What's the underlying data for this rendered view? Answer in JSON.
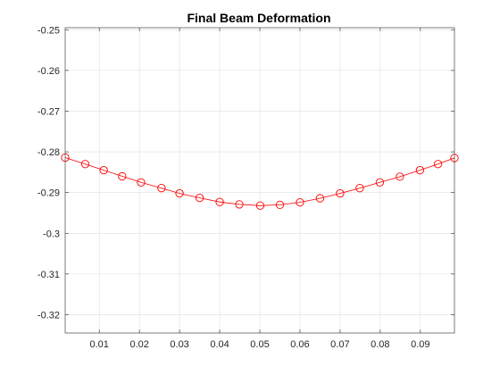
{
  "chart_data": {
    "type": "line",
    "title": "Final Beam Deformation",
    "xlabel": "",
    "ylabel": "",
    "xlim": [
      0.0015,
      0.0985
    ],
    "ylim": [
      -0.3245,
      -0.2495
    ],
    "grid": true,
    "xticks": [
      0.01,
      0.02,
      0.03,
      0.04,
      0.05,
      0.06,
      0.07,
      0.08,
      0.09
    ],
    "xtick_labels": [
      "0.01",
      "0.02",
      "0.03",
      "0.04",
      "0.05",
      "0.06",
      "0.07",
      "0.08",
      "0.09"
    ],
    "yticks": [
      -0.25,
      -0.26,
      -0.27,
      -0.28,
      -0.29,
      -0.3,
      -0.31,
      -0.32
    ],
    "ytick_labels": [
      "-0.25",
      "-0.26",
      "-0.27",
      "-0.28",
      "-0.29",
      "-0.3",
      "-0.31",
      "-0.32"
    ],
    "series": [
      {
        "color": "#ff0000",
        "marker": "circle",
        "x": [
          0.0015,
          0.0065,
          0.0111,
          0.0157,
          0.0204,
          0.0255,
          0.03,
          0.035,
          0.04,
          0.0449,
          0.0501,
          0.055,
          0.06,
          0.065,
          0.07,
          0.0749,
          0.0799,
          0.0849,
          0.0899,
          0.0944,
          0.0985
        ],
        "y": [
          -0.2814,
          -0.283,
          -0.2845,
          -0.286,
          -0.2875,
          -0.2889,
          -0.2902,
          -0.2913,
          -0.2923,
          -0.2929,
          -0.2932,
          -0.293,
          -0.2924,
          -0.2914,
          -0.2902,
          -0.2889,
          -0.2875,
          -0.2861,
          -0.2845,
          -0.283,
          -0.2815
        ]
      }
    ]
  }
}
